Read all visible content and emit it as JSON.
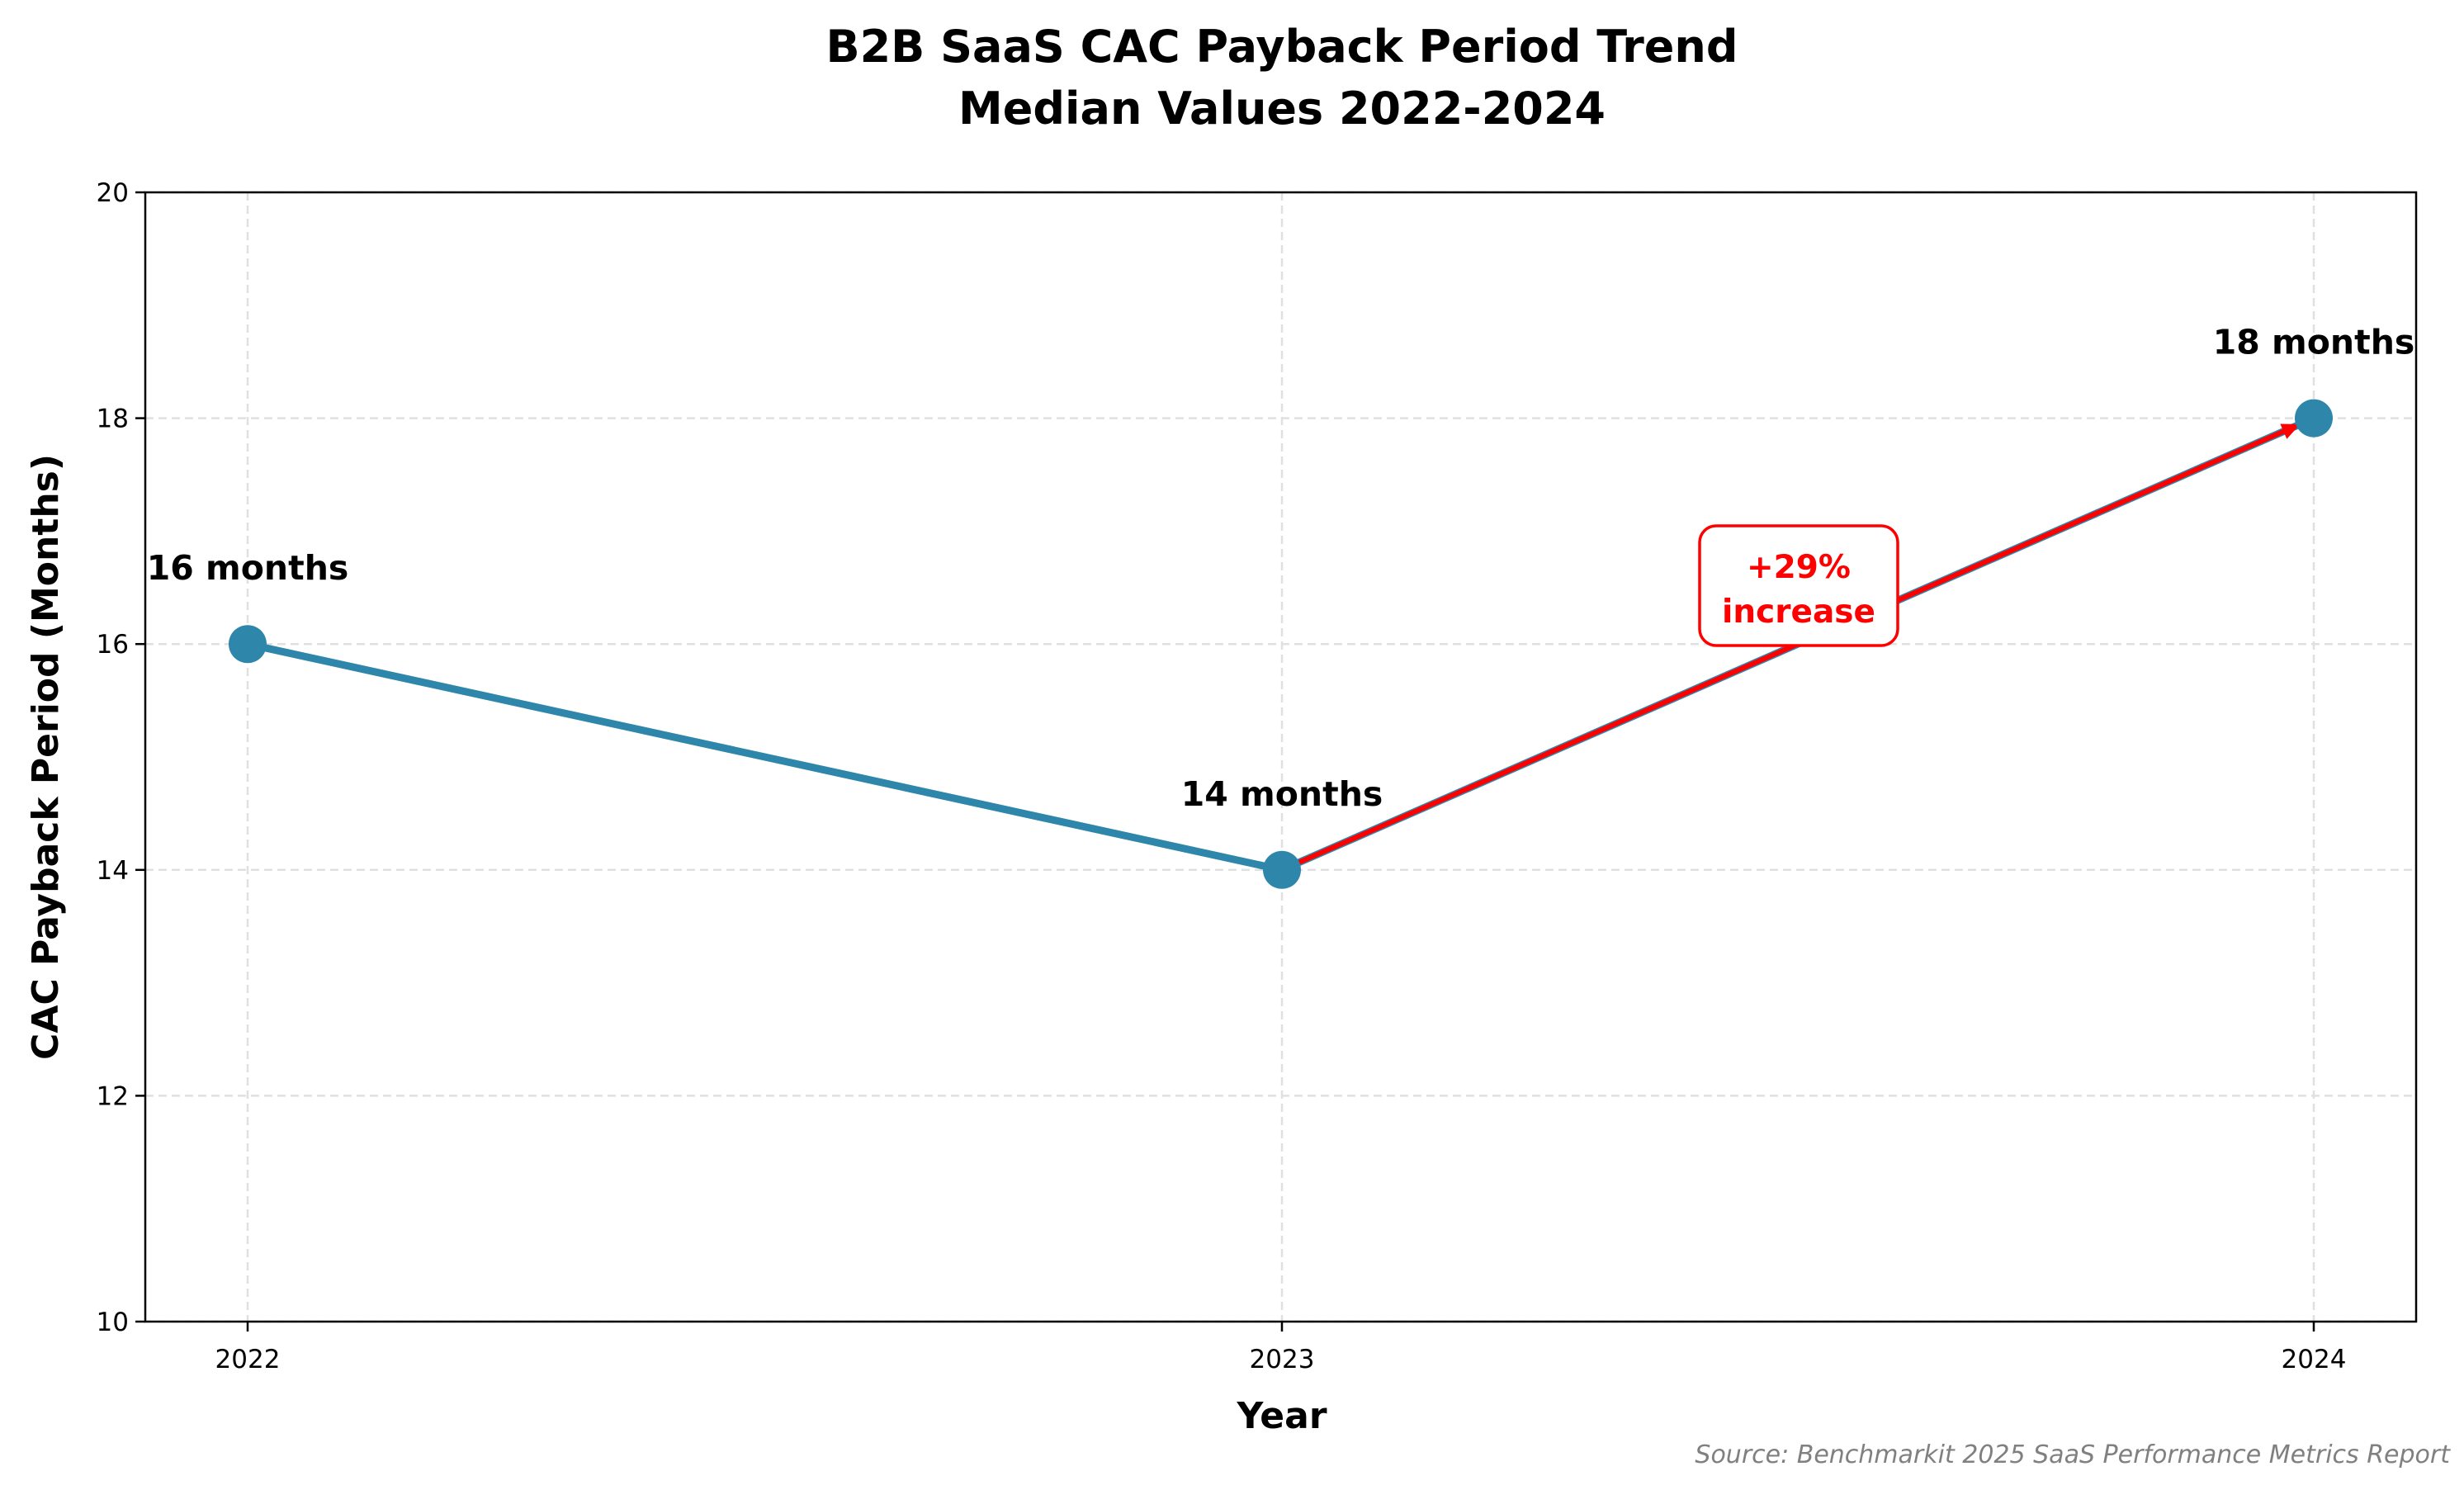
{
  "chart_data": {
    "type": "line",
    "title": "B2B SaaS CAC Payback Period Trend",
    "subtitle": "Median Values 2022-2024",
    "xlabel": "Year",
    "ylabel": "CAC Payback Period (Months)",
    "categories": [
      "2022",
      "2023",
      "2024"
    ],
    "values": [
      16,
      14,
      18
    ],
    "data_labels": [
      "16 months",
      "14 months",
      "18 months"
    ],
    "ylim": [
      10,
      20
    ],
    "yticks": [
      "10",
      "12",
      "14",
      "16",
      "18",
      "20"
    ],
    "grid": true,
    "line_color": "#2e86ab",
    "annotation": {
      "text_line1": "+29%",
      "text_line2": "increase",
      "from": "2023",
      "to": "2024",
      "color": "#ff0000"
    },
    "source": "Source: Benchmarkit 2025 SaaS Performance Metrics Report"
  }
}
